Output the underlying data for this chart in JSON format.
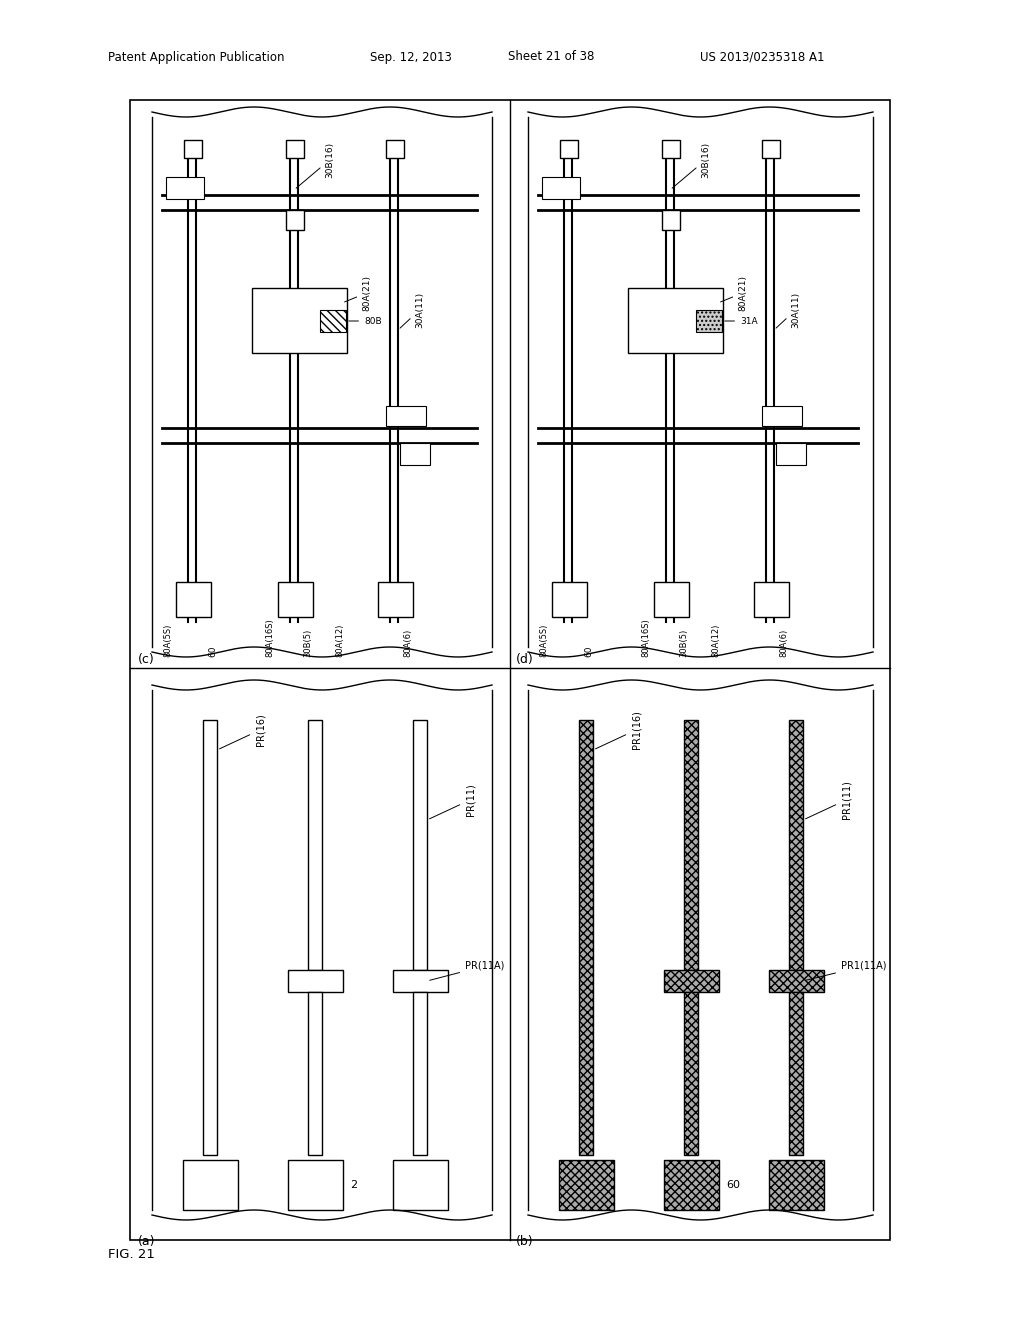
{
  "title_header": "Patent Application Publication",
  "title_date": "Sep. 12, 2013",
  "title_sheet": "Sheet 21 of 38",
  "title_patent": "US 2013/0235318 A1",
  "fig_label": "FIG. 21",
  "background_color": "#ffffff",
  "line_color": "#000000"
}
